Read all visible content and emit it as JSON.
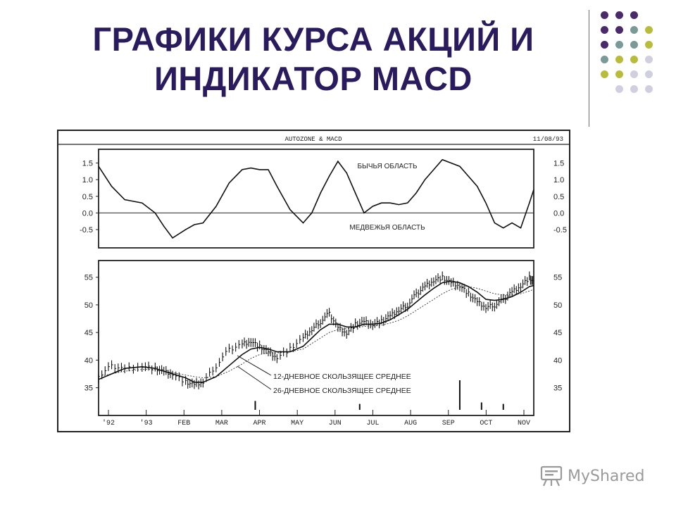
{
  "title": {
    "line1": "ГРАФИКИ КУРСА АКЦИЙ И",
    "line2": "ИНДИКАТОР MACD"
  },
  "colors": {
    "title": "#2a1a5e",
    "purple": "#4b2a6a",
    "teal": "#7a9a98",
    "olive": "#b8bc3a",
    "lavender": "#cfcfe0"
  },
  "decor_dots": [
    [
      "purple",
      "purple",
      "purple",
      ""
    ],
    [
      "purple",
      "purple",
      "teal",
      "olive"
    ],
    [
      "purple",
      "teal",
      "teal",
      "olive"
    ],
    [
      "teal",
      "olive",
      "olive",
      "lavender"
    ],
    [
      "olive",
      "olive",
      "lavender",
      "lavender"
    ],
    [
      "",
      "lavender",
      "lavender",
      "lavender"
    ]
  ],
  "watermark": {
    "text": "MyShared",
    "icon": "presentation-board-icon"
  },
  "chart_data": [
    {
      "type": "line",
      "panel": "macd",
      "title": "AUTOZONE & MACD",
      "date": "11/08/93",
      "annotations": [
        "БЫЧЬЯ ОБЛАСТЬ",
        "МЕДВЕЖЬЯ ОБЛАСТЬ"
      ],
      "yticks": [
        "1.5",
        "1.0",
        "0.5",
        "0.0",
        "-0.5"
      ],
      "yticks_right": [
        "1.5",
        "1.0",
        "0.5",
        "0.0",
        "-0.5"
      ],
      "ylim": [
        -0.9,
        1.7
      ],
      "xlim": [
        0,
        100
      ],
      "zero_line": 0.0,
      "x": [
        0,
        3,
        6,
        10,
        13,
        15,
        17,
        20,
        22,
        24,
        27,
        30,
        33,
        35,
        37,
        39,
        41,
        44,
        47,
        49,
        51,
        53,
        55,
        57,
        59,
        61,
        63,
        65,
        67,
        69,
        71,
        73,
        75,
        77,
        79,
        81,
        83,
        85,
        87,
        89,
        91,
        93,
        95,
        97,
        99,
        100
      ],
      "values": [
        1.4,
        0.8,
        0.4,
        0.3,
        0.0,
        -0.4,
        -0.75,
        -0.5,
        -0.35,
        -0.3,
        0.2,
        0.9,
        1.3,
        1.35,
        1.3,
        1.3,
        0.8,
        0.1,
        -0.3,
        0.0,
        0.6,
        1.1,
        1.55,
        1.2,
        0.6,
        0.0,
        0.2,
        0.3,
        0.3,
        0.25,
        0.3,
        0.6,
        1.0,
        1.3,
        1.6,
        1.5,
        1.4,
        1.1,
        0.8,
        0.3,
        -0.3,
        -0.45,
        -0.3,
        -0.45,
        0.3,
        0.7
      ]
    },
    {
      "type": "line",
      "panel": "price",
      "yticks": [
        "55",
        "50",
        "45",
        "40",
        "35"
      ],
      "yticks_right": [
        "55",
        "50",
        "45",
        "40",
        "35"
      ],
      "ylim": [
        31,
        57
      ],
      "xlim": [
        0,
        100
      ],
      "categories": [
        "'92",
        "'93",
        "FEB",
        "MAR",
        "APR",
        "MAY",
        "JUN",
        "JUL",
        "AUG",
        "SEP",
        "OCT",
        "NOV"
      ],
      "x": [
        0,
        3,
        6,
        10,
        13,
        15,
        17,
        20,
        22,
        24,
        27,
        30,
        33,
        35,
        37,
        39,
        41,
        44,
        47,
        49,
        51,
        53,
        55,
        57,
        59,
        61,
        63,
        65,
        67,
        69,
        71,
        73,
        75,
        77,
        79,
        81,
        83,
        85,
        87,
        89,
        91,
        93,
        95,
        97,
        99,
        100
      ],
      "series": [
        {
          "name": "price",
          "values": [
            37,
            39,
            38.5,
            39,
            38.5,
            38,
            37.5,
            36,
            35.5,
            36,
            39,
            42,
            43,
            43.5,
            42.5,
            41.5,
            40.5,
            42,
            44,
            45.5,
            47,
            48.5,
            46,
            45,
            46.5,
            47,
            46.5,
            47,
            48,
            49,
            50,
            52,
            53.5,
            54.5,
            55,
            54,
            53.5,
            52,
            50.5,
            49.5,
            50,
            51,
            52.5,
            53.5,
            55,
            54
          ]
        },
        {
          "name": "12-ДНЕВНОЕ СКОЛЬЗЯЩЕЕ СРЕДНЕЕ",
          "values": [
            36.5,
            37.5,
            38.5,
            38.8,
            38.5,
            38,
            37.5,
            36.8,
            36,
            36,
            37,
            39,
            41,
            42,
            42.3,
            42,
            41.5,
            41.5,
            42.5,
            44,
            45.5,
            46.5,
            46.5,
            46,
            46,
            46.5,
            46.5,
            46.7,
            47.3,
            48.2,
            49.2,
            50.5,
            51.8,
            53,
            54,
            54.3,
            54,
            53.3,
            52.3,
            51,
            50.8,
            51,
            51.5,
            52.3,
            53.3,
            53.5
          ]
        },
        {
          "name": "26-ДНЕВНОЕ СКОЛЬЗЯЩЕЕ СРЕДНЕЕ",
          "values": [
            37,
            37.5,
            38,
            38.3,
            38.3,
            38,
            37.7,
            37.3,
            37,
            36.8,
            37,
            38,
            39.3,
            40.3,
            41,
            41.3,
            41.3,
            41.5,
            42,
            43,
            44,
            45,
            45.5,
            45.7,
            45.9,
            46.1,
            46.2,
            46.3,
            46.7,
            47.2,
            48,
            49,
            50,
            51,
            52,
            52.8,
            53.2,
            53.3,
            53,
            52.5,
            52,
            51.8,
            51.8,
            52,
            52.5,
            52.8
          ]
        }
      ],
      "legend_labels": [
        "12-ДНЕВНОЕ СКОЛЬЗЯЩЕЕ СРЕДНЕЕ",
        "26-ДНЕВНОЕ СКОЛЬЗЯЩЕЕ СРЕДНЕЕ"
      ],
      "volume_spikes": [
        {
          "x": 36,
          "value": 0.3
        },
        {
          "x": 60,
          "value": 0.2
        },
        {
          "x": 83,
          "value": 1.0
        },
        {
          "x": 88,
          "value": 0.25
        },
        {
          "x": 93,
          "value": 0.2
        }
      ]
    }
  ]
}
